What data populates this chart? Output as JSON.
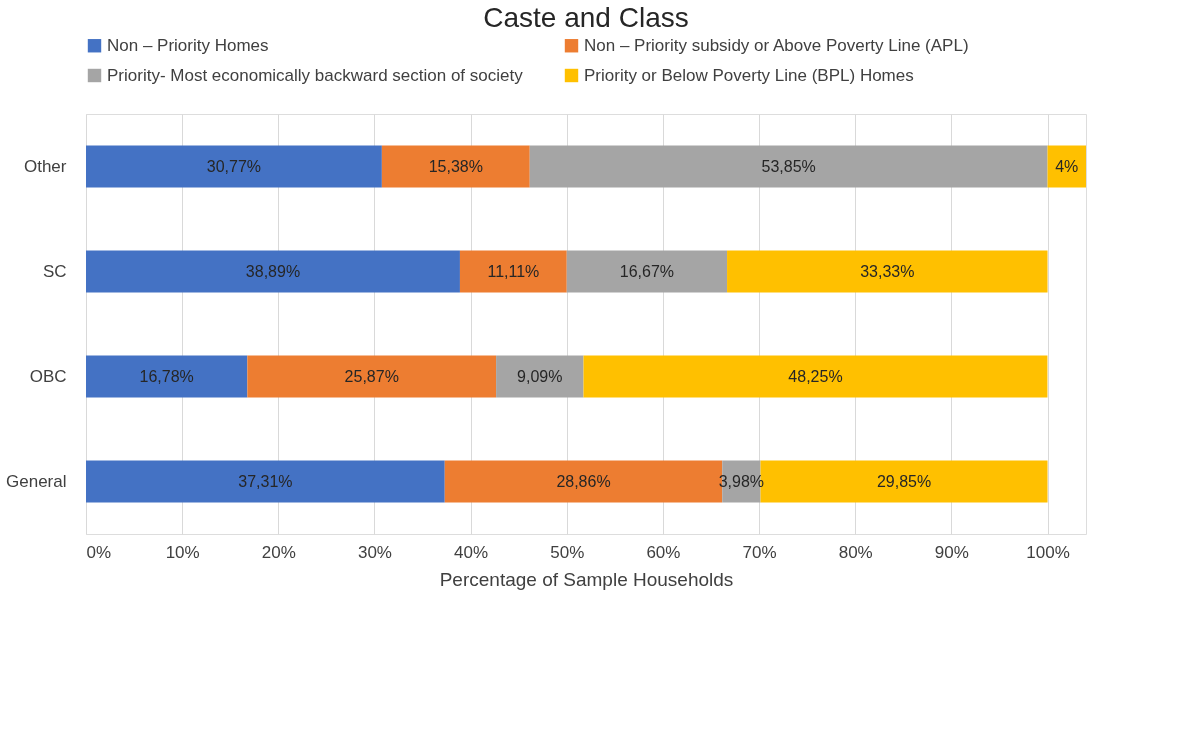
{
  "chart_data": {
    "type": "bar",
    "orientation": "horizontal",
    "stacked": true,
    "title": "Caste and Class",
    "xlabel": "Percentage of Sample Households",
    "categories": [
      "Other",
      "SC",
      "OBC",
      "General"
    ],
    "series": [
      {
        "name": "Non – Priority Homes",
        "color": "#4472c4",
        "values": [
          30.77,
          38.89,
          16.78,
          37.31
        ],
        "value_labels": [
          "30,77%",
          "38,89%",
          "16,78%",
          "37,31%"
        ]
      },
      {
        "name": "Non – Priority subsidy or Above Poverty Line (APL)",
        "color": "#ed7d31",
        "values": [
          15.38,
          11.11,
          25.87,
          28.86
        ],
        "value_labels": [
          "15,38%",
          "11,11%",
          "25,87%",
          "28,86%"
        ]
      },
      {
        "name": "Priority- Most economically backward section of society",
        "color": "#a5a5a5",
        "values": [
          53.85,
          16.67,
          9.09,
          3.98
        ],
        "value_labels": [
          "53,85%",
          "16,67%",
          "9,09%",
          "3,98%"
        ]
      },
      {
        "name": "Priority or Below Poverty Line (BPL) Homes",
        "color": "#ffc000",
        "values": [
          4,
          33.33,
          48.25,
          29.85
        ],
        "value_labels": [
          "4%",
          "33,33%",
          "48,25%",
          "29,85%"
        ]
      }
    ],
    "xlim": [
      0,
      104
    ],
    "xticks": [
      {
        "value": 0,
        "label": "0%"
      },
      {
        "value": 10,
        "label": "10%"
      },
      {
        "value": 20,
        "label": "20%"
      },
      {
        "value": 30,
        "label": "30%"
      },
      {
        "value": 40,
        "label": "40%"
      },
      {
        "value": 50,
        "label": "50%"
      },
      {
        "value": 60,
        "label": "60%"
      },
      {
        "value": 70,
        "label": "70%"
      },
      {
        "value": 80,
        "label": "80%"
      },
      {
        "value": 90,
        "label": "90%"
      },
      {
        "value": 100,
        "label": "100%"
      }
    ],
    "grid": "x",
    "legend": "top"
  }
}
